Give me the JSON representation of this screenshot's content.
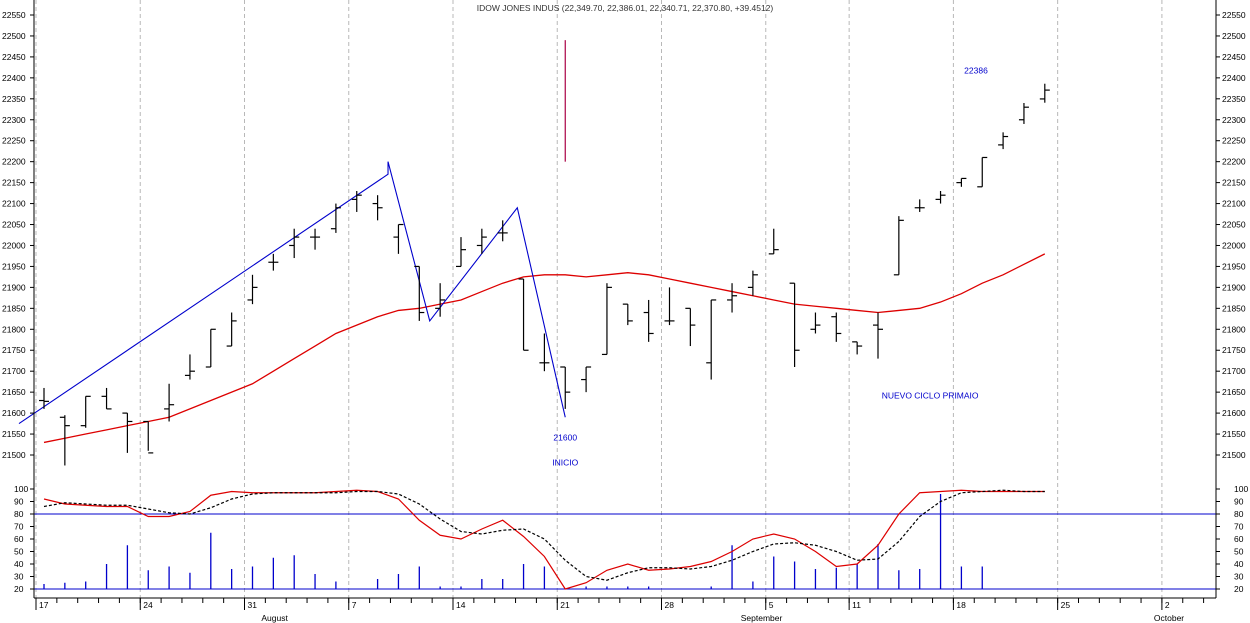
{
  "chart_data": [
    {
      "type": "ohlc",
      "title": "IDOW JONES INDUS (22,349.70, 22,386.01, 22,340.71, 22,370.80, +39.4512)",
      "ylim": [
        21450,
        22570
      ],
      "y_ticks": [
        21500,
        21550,
        21600,
        21650,
        21700,
        21750,
        21800,
        21850,
        21900,
        21950,
        22000,
        22050,
        22100,
        22150,
        22200,
        22250,
        22300,
        22350,
        22400,
        22450,
        22500,
        22550
      ],
      "grid": "vertical-dashed",
      "x_ticks": [
        {
          "i": 0,
          "label": "17"
        },
        {
          "i": 5,
          "label": "24"
        },
        {
          "i": 10,
          "label": "31"
        },
        {
          "i": 15,
          "label": "7"
        },
        {
          "i": 20,
          "label": "14"
        },
        {
          "i": 25,
          "label": "21"
        },
        {
          "i": 30,
          "label": "28"
        },
        {
          "i": 35,
          "label": "5"
        },
        {
          "i": 39,
          "label": "11"
        },
        {
          "i": 44,
          "label": "18"
        },
        {
          "i": 49,
          "label": "25"
        },
        {
          "i": 54,
          "label": "2"
        }
      ],
      "month_labels": [
        {
          "i": 11,
          "label": "August"
        },
        {
          "i": 35,
          "label": "September"
        },
        {
          "i": 54,
          "label": "October"
        }
      ],
      "bars": [
        {
          "o": 21630,
          "h": 21660,
          "l": 21610,
          "c": 21628
        },
        {
          "o": 21590,
          "h": 21595,
          "l": 21475,
          "c": 21570
        },
        {
          "o": 21570,
          "h": 21640,
          "l": 21565,
          "c": 21640
        },
        {
          "o": 21640,
          "h": 21660,
          "l": 21610,
          "c": 21610
        },
        {
          "o": 21600,
          "h": 21600,
          "l": 21505,
          "c": 21580
        },
        {
          "o": 21580,
          "h": 21580,
          "l": 21510,
          "c": 21505
        },
        {
          "o": 21610,
          "h": 21670,
          "l": 21580,
          "c": 21620
        },
        {
          "o": 21690,
          "h": 21740,
          "l": 21680,
          "c": 21700
        },
        {
          "o": 21710,
          "h": 21800,
          "l": 21710,
          "c": 21800
        },
        {
          "o": 21760,
          "h": 21840,
          "l": 21760,
          "c": 21820
        },
        {
          "o": 21870,
          "h": 21930,
          "l": 21860,
          "c": 21900
        },
        {
          "o": 21960,
          "h": 21980,
          "l": 21940,
          "c": 21960
        },
        {
          "o": 22000,
          "h": 22040,
          "l": 21970,
          "c": 22020
        },
        {
          "o": 22020,
          "h": 22040,
          "l": 21990,
          "c": 22020
        },
        {
          "o": 22040,
          "h": 22100,
          "l": 22030,
          "c": 22090
        },
        {
          "o": 22110,
          "h": 22130,
          "l": 22080,
          "c": 22120
        },
        {
          "o": 22100,
          "h": 22120,
          "l": 22060,
          "c": 22090
        },
        {
          "o": 22020,
          "h": 22050,
          "l": 21980,
          "c": 22050
        },
        {
          "o": 21950,
          "h": 21950,
          "l": 21820,
          "c": 21840
        },
        {
          "o": 21850,
          "h": 21910,
          "l": 21830,
          "c": 21870
        },
        {
          "o": 21950,
          "h": 22020,
          "l": 21950,
          "c": 21990
        },
        {
          "o": 22000,
          "h": 22040,
          "l": 21980,
          "c": 22020
        },
        {
          "o": 22030,
          "h": 22060,
          "l": 22010,
          "c": 22030
        },
        {
          "o": 21920,
          "h": 21920,
          "l": 21750,
          "c": 21750
        },
        {
          "o": 21720,
          "h": 21790,
          "l": 21700,
          "c": 21720
        },
        {
          "o": 21710,
          "h": 21710,
          "l": 21610,
          "c": 21650
        },
        {
          "o": 21680,
          "h": 21710,
          "l": 21650,
          "c": 21710
        },
        {
          "o": 21740,
          "h": 21910,
          "l": 21740,
          "c": 21900
        },
        {
          "o": 21860,
          "h": 21860,
          "l": 21810,
          "c": 21820
        },
        {
          "o": 21840,
          "h": 21870,
          "l": 21770,
          "c": 21790
        },
        {
          "o": 21820,
          "h": 21900,
          "l": 21810,
          "c": 21820
        },
        {
          "o": 21850,
          "h": 21850,
          "l": 21760,
          "c": 21810
        },
        {
          "o": 21720,
          "h": 21870,
          "l": 21680,
          "c": 21870
        },
        {
          "o": 21870,
          "h": 21910,
          "l": 21840,
          "c": 21880
        },
        {
          "o": 21900,
          "h": 21940,
          "l": 21880,
          "c": 21930
        },
        {
          "o": 21980,
          "h": 22040,
          "l": 21980,
          "c": 21990
        },
        {
          "o": 21910,
          "h": 21910,
          "l": 21710,
          "c": 21750
        },
        {
          "o": 21800,
          "h": 21840,
          "l": 21790,
          "c": 21810
        },
        {
          "o": 21830,
          "h": 21840,
          "l": 21770,
          "c": 21790
        },
        {
          "o": 21770,
          "h": 21770,
          "l": 21740,
          "c": 21760
        },
        {
          "o": 21810,
          "h": 21840,
          "l": 21730,
          "c": 21800
        },
        {
          "o": 21930,
          "h": 22070,
          "l": 21930,
          "c": 22060
        },
        {
          "o": 22090,
          "h": 22110,
          "l": 22080,
          "c": 22090
        },
        {
          "o": 22110,
          "h": 22130,
          "l": 22100,
          "c": 22120
        },
        {
          "o": 22150,
          "h": 22160,
          "l": 22140,
          "c": 22160
        },
        {
          "o": 22140,
          "h": 22210,
          "l": 22140,
          "c": 22210
        },
        {
          "o": 22240,
          "h": 22270,
          "l": 22230,
          "c": 22260
        },
        {
          "o": 22300,
          "h": 22340,
          "l": 22290,
          "c": 22330
        },
        {
          "o": 22349.7,
          "h": 22386.01,
          "l": 22340.71,
          "c": 22370.8
        }
      ],
      "moving_average": {
        "color": "#dd0000",
        "values": [
          21530,
          21540,
          21550,
          21560,
          21570,
          21580,
          21590,
          21610,
          21630,
          21650,
          21670,
          21700,
          21730,
          21760,
          21790,
          21810,
          21830,
          21845,
          21850,
          21860,
          21870,
          21890,
          21910,
          21925,
          21930,
          21930,
          21925,
          21930,
          21935,
          21930,
          21920,
          21910,
          21900,
          21890,
          21880,
          21870,
          21860,
          21855,
          21850,
          21845,
          21840,
          21845,
          21850,
          21865,
          21885,
          21910,
          21930,
          21955,
          21980
        ]
      },
      "trendlines": [
        {
          "color": "#0000cc",
          "points": [
            {
              "i": -1.2,
              "v": 21575
            },
            {
              "i": 16.5,
              "v": 22170
            },
            {
              "i": 16.5,
              "v": 22200
            },
            {
              "i": 18.5,
              "v": 21820
            },
            {
              "i": 22.7,
              "v": 22090
            },
            {
              "i": 25,
              "v": 21590
            }
          ]
        }
      ],
      "vertical_marker": {
        "i": 25,
        "from": 22200,
        "to": 22490,
        "color": "#aa0044"
      },
      "annotations": [
        {
          "text": "22386",
          "i": 44.7,
          "v": 22410
        },
        {
          "text": "21600",
          "i": 25,
          "v": 21535
        },
        {
          "text": "INICIO",
          "i": 25,
          "v": 21475
        },
        {
          "text": "NUEVO CICLO PRIMAIO",
          "i": 42.5,
          "v": 21635
        }
      ]
    },
    {
      "type": "oscillator",
      "ylim": [
        17,
        104
      ],
      "y_ticks": [
        20,
        30,
        40,
        50,
        60,
        70,
        80,
        90,
        100
      ],
      "hlines": [
        {
          "v": 80,
          "color": "#0000cc"
        },
        {
          "v": 20,
          "color": "#0000cc"
        }
      ],
      "series": [
        {
          "color": "#dd0000",
          "style": "solid",
          "values": [
            92,
            88,
            87,
            86,
            86,
            78,
            78,
            82,
            95,
            98,
            97,
            97,
            97,
            97,
            98,
            99,
            98,
            92,
            75,
            63,
            60,
            68,
            75,
            62,
            46,
            20,
            25,
            35,
            40,
            35,
            36,
            38,
            42,
            50,
            60,
            64,
            60,
            50,
            38,
            40,
            55,
            80,
            97,
            98,
            99,
            98,
            98,
            98,
            98
          ]
        },
        {
          "color": "#000000",
          "style": "dashed",
          "values": [
            86,
            89,
            88,
            87,
            87,
            84,
            81,
            80,
            85,
            92,
            96,
            97,
            97,
            97,
            97,
            98,
            98,
            96,
            88,
            76,
            66,
            64,
            67,
            68,
            60,
            43,
            30,
            27,
            33,
            37,
            37,
            36,
            38,
            43,
            50,
            56,
            57,
            55,
            50,
            43,
            44,
            58,
            78,
            90,
            97,
            98,
            99,
            98,
            98
          ]
        }
      ],
      "spikes": {
        "color": "#0000cc",
        "values": [
          24,
          25,
          26,
          40,
          55,
          35,
          38,
          33,
          65,
          36,
          38,
          45,
          47,
          32,
          26,
          20,
          28,
          32,
          38,
          22,
          22,
          28,
          28,
          40,
          38,
          20,
          22,
          22,
          22,
          22,
          20,
          20,
          22,
          55,
          26,
          46,
          42,
          36,
          37,
          40,
          56,
          35,
          36,
          96,
          38,
          38,
          0,
          0,
          0
        ]
      }
    }
  ]
}
